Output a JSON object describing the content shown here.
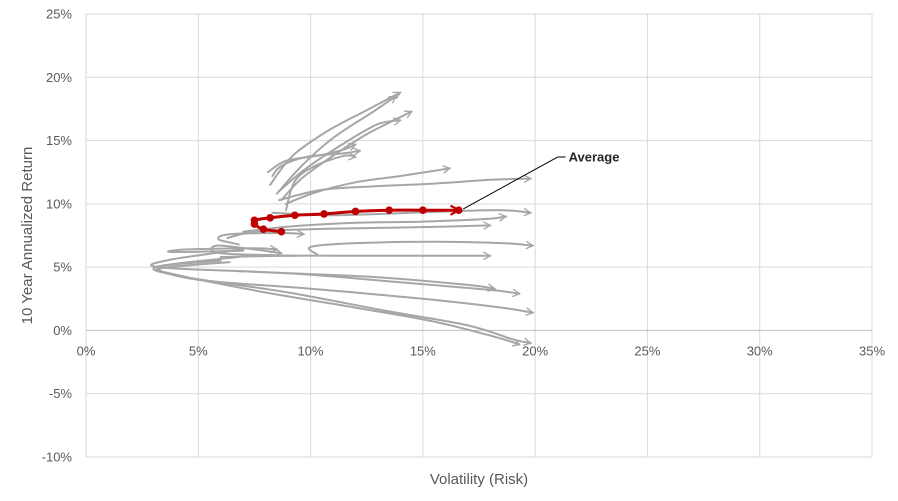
{
  "chart_data": {
    "type": "line",
    "title": "",
    "xlabel": "Volatility (Risk)",
    "ylabel": "10 Year Annualized Return",
    "xlim": [
      0,
      35
    ],
    "ylim": [
      -10,
      25
    ],
    "x_ticks": [
      0,
      5,
      10,
      15,
      20,
      25,
      30,
      35
    ],
    "x_tick_labels": [
      "0%",
      "5%",
      "10%",
      "15%",
      "20%",
      "25%",
      "30%",
      "35%"
    ],
    "y_ticks": [
      -10,
      -5,
      0,
      5,
      10,
      15,
      20,
      25
    ],
    "y_tick_labels": [
      "-10%",
      "-5%",
      "0%",
      "5%",
      "10%",
      "15%",
      "20%",
      "25%"
    ],
    "grid": true,
    "legend": "none",
    "colors": {
      "grey_series": "#a6a6a6",
      "average": "#c00000",
      "grid": "#d9d9d9"
    },
    "series": [
      {
        "points": [
          [
            8.6,
            11.0
          ],
          [
            9.8,
            12.8
          ],
          [
            11.5,
            14.8
          ],
          [
            13.0,
            16.3
          ],
          [
            14.0,
            16.6
          ]
        ]
      },
      {
        "points": [
          [
            8.5,
            10.8
          ],
          [
            9.6,
            13.0
          ],
          [
            11.0,
            15.2
          ],
          [
            12.8,
            17.3
          ],
          [
            13.8,
            18.5
          ]
        ]
      },
      {
        "points": [
          [
            8.2,
            11.5
          ],
          [
            9.2,
            13.8
          ],
          [
            10.8,
            15.8
          ],
          [
            12.5,
            17.4
          ],
          [
            14.0,
            18.8
          ]
        ]
      },
      {
        "points": [
          [
            8.7,
            10.3
          ],
          [
            9.6,
            12.0
          ],
          [
            11.0,
            13.8
          ],
          [
            12.5,
            15.5
          ],
          [
            14.5,
            17.3
          ]
        ]
      },
      {
        "points": [
          [
            8.3,
            12.2
          ],
          [
            8.7,
            13.0
          ],
          [
            9.8,
            13.7
          ],
          [
            11.5,
            14.0
          ],
          [
            12.2,
            14.2
          ]
        ]
      },
      {
        "points": [
          [
            8.9,
            9.5
          ],
          [
            9.3,
            11.8
          ],
          [
            10.2,
            13.0
          ],
          [
            11.5,
            13.8
          ],
          [
            12.0,
            13.7
          ]
        ]
      },
      {
        "points": [
          [
            8.1,
            12.5
          ],
          [
            8.9,
            13.4
          ],
          [
            10.3,
            13.8
          ],
          [
            11.5,
            14.3
          ],
          [
            12.0,
            14.7
          ]
        ]
      },
      {
        "points": [
          [
            8.9,
            10.0
          ],
          [
            10.2,
            10.9
          ],
          [
            12.0,
            11.7
          ],
          [
            14.0,
            12.2
          ],
          [
            16.2,
            12.8
          ]
        ]
      },
      {
        "points": [
          [
            8.6,
            10.3
          ],
          [
            10.5,
            11.1
          ],
          [
            13.0,
            11.4
          ],
          [
            15.5,
            11.6
          ],
          [
            18.0,
            11.9
          ],
          [
            19.8,
            12.0
          ]
        ]
      },
      {
        "points": [
          [
            8.3,
            9.3
          ],
          [
            10.5,
            9.1
          ],
          [
            13.0,
            9.2
          ],
          [
            16.0,
            9.4
          ],
          [
            18.5,
            9.5
          ],
          [
            19.8,
            9.3
          ]
        ]
      },
      {
        "points": [
          [
            7.0,
            7.8
          ],
          [
            9.0,
            8.2
          ],
          [
            12.0,
            8.5
          ],
          [
            15.0,
            8.6
          ],
          [
            17.8,
            8.8
          ],
          [
            18.7,
            9.0
          ]
        ]
      },
      {
        "points": [
          [
            6.3,
            7.3
          ],
          [
            7.5,
            7.8
          ],
          [
            10.0,
            8.0
          ],
          [
            13.0,
            8.1
          ],
          [
            16.0,
            8.2
          ],
          [
            18.0,
            8.3
          ]
        ]
      },
      {
        "points": [
          [
            6.8,
            6.8
          ],
          [
            5.9,
            7.2
          ],
          [
            6.4,
            7.6
          ],
          [
            8.8,
            7.7
          ],
          [
            9.7,
            7.6
          ]
        ]
      },
      {
        "points": [
          [
            10.3,
            6.0
          ],
          [
            10.0,
            6.6
          ],
          [
            12.0,
            6.9
          ],
          [
            15.5,
            7.0
          ],
          [
            18.5,
            6.9
          ],
          [
            19.9,
            6.7
          ]
        ]
      },
      {
        "points": [
          [
            9.4,
            5.9
          ],
          [
            6.0,
            6.1
          ],
          [
            5.8,
            6.7
          ],
          [
            7.5,
            6.4
          ],
          [
            8.7,
            6.1
          ]
        ]
      },
      {
        "points": [
          [
            7.0,
            6.3
          ],
          [
            3.8,
            6.2
          ],
          [
            4.5,
            6.4
          ],
          [
            7.5,
            6.5
          ],
          [
            8.5,
            6.4
          ]
        ]
      },
      {
        "points": [
          [
            6.0,
            5.8
          ],
          [
            9.0,
            5.9
          ],
          [
            12.5,
            5.9
          ],
          [
            16.0,
            5.9
          ],
          [
            18.0,
            5.9
          ]
        ]
      },
      {
        "points": [
          [
            7.0,
            6.4
          ],
          [
            3.8,
            5.6
          ],
          [
            3.2,
            5.0
          ],
          [
            8.0,
            4.6
          ],
          [
            13.0,
            4.2
          ],
          [
            17.0,
            3.6
          ],
          [
            18.2,
            3.3
          ]
        ]
      },
      {
        "points": [
          [
            6.6,
            4.7
          ],
          [
            10.0,
            4.4
          ],
          [
            14.0,
            3.8
          ],
          [
            18.0,
            3.2
          ],
          [
            19.3,
            2.9
          ]
        ]
      },
      {
        "points": [
          [
            6.0,
            5.5
          ],
          [
            3.2,
            5.0
          ],
          [
            5.0,
            4.0
          ],
          [
            10.0,
            3.3
          ],
          [
            15.0,
            2.5
          ],
          [
            18.5,
            1.8
          ],
          [
            19.9,
            1.4
          ]
        ]
      },
      {
        "points": [
          [
            6.8,
            5.8
          ],
          [
            3.1,
            5.0
          ],
          [
            4.5,
            4.2
          ],
          [
            9.0,
            3.0
          ],
          [
            13.5,
            1.5
          ],
          [
            17.0,
            0.4
          ],
          [
            19.0,
            -0.7
          ],
          [
            19.8,
            -1.0
          ]
        ]
      },
      {
        "points": [
          [
            6.4,
            5.4
          ],
          [
            3.3,
            4.9
          ],
          [
            4.0,
            4.4
          ],
          [
            8.0,
            3.0
          ],
          [
            12.0,
            1.8
          ],
          [
            15.5,
            0.7
          ],
          [
            18.2,
            -0.5
          ],
          [
            19.3,
            -1.1
          ]
        ]
      }
    ],
    "average": {
      "name": "Average",
      "points": [
        [
          8.7,
          7.8
        ],
        [
          7.9,
          8.0
        ],
        [
          7.5,
          8.4
        ],
        [
          7.5,
          8.7
        ],
        [
          8.2,
          8.9
        ],
        [
          9.3,
          9.1
        ],
        [
          10.6,
          9.2
        ],
        [
          12.0,
          9.4
        ],
        [
          13.5,
          9.5
        ],
        [
          15.0,
          9.5
        ],
        [
          16.6,
          9.5
        ]
      ]
    },
    "annotation": {
      "text": "Average",
      "x": 21.0,
      "y": 13.7,
      "target": [
        16.8,
        9.6
      ]
    }
  }
}
